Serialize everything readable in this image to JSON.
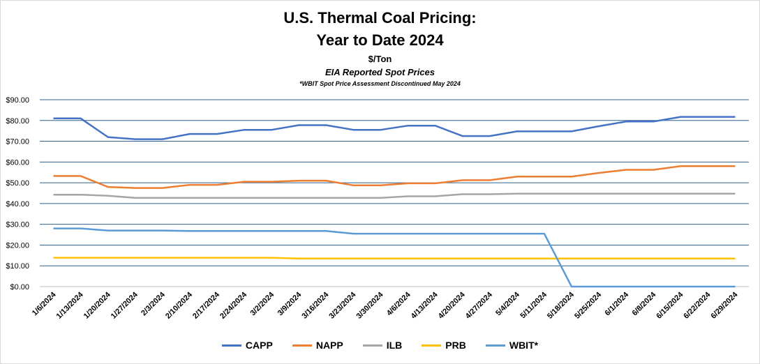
{
  "chart_data": {
    "type": "line",
    "title": "U.S. Thermal Coal Pricing:",
    "title_line2": "Year to Date 2024",
    "subtitle": "$/Ton",
    "subtitle2": "EIA Reported Spot Prices",
    "note": "*WBIT Spot Price Assessment Discontinued May 2024",
    "xlabel": "",
    "ylabel": "",
    "ylim": [
      0,
      90
    ],
    "yticks": [
      "$0.00",
      "$10.00",
      "$20.00",
      "$30.00",
      "$40.00",
      "$50.00",
      "$60.00",
      "$70.00",
      "$80.00",
      "$90.00"
    ],
    "grid": true,
    "legend_position": "bottom",
    "categories": [
      "1/6/2024",
      "1/13/2024",
      "1/20/2024",
      "1/27/2024",
      "2/3/2024",
      "2/10/2024",
      "2/17/2024",
      "2/24/2024",
      "3/2/2024",
      "3/9/2024",
      "3/16/2024",
      "3/23/2024",
      "3/30/2024",
      "4/6/2024",
      "4/13/2024",
      "4/20/2024",
      "4/27/2024",
      "5/4/2024",
      "5/11/2024",
      "5/18/2024",
      "5/25/2024",
      "6/1/2024",
      "6/8/2024",
      "6/15/2024",
      "6/22/2024",
      "6/29/2024"
    ],
    "series": [
      {
        "name": "CAPP",
        "color": "#4472c4",
        "values": [
          81,
          81,
          72,
          71,
          71,
          73.5,
          73.5,
          75.5,
          75.5,
          77.75,
          77.75,
          75.5,
          75.5,
          77.5,
          77.5,
          72.5,
          72.5,
          74.75,
          74.75,
          74.75,
          77.25,
          79.5,
          79.5,
          81.75,
          81.75,
          81.75
        ]
      },
      {
        "name": "NAPP",
        "color": "#ed7d31",
        "values": [
          53.25,
          53.25,
          48,
          47.5,
          47.5,
          49,
          49,
          50.5,
          50.5,
          51,
          51,
          48.75,
          48.75,
          49.75,
          49.75,
          51.25,
          51.25,
          53,
          53,
          53,
          54.75,
          56.25,
          56.25,
          58,
          58,
          58
        ]
      },
      {
        "name": "ILB",
        "color": "#a5a5a5",
        "values": [
          44.25,
          44.25,
          43.75,
          42.75,
          42.75,
          42.75,
          42.75,
          42.75,
          42.75,
          42.75,
          42.75,
          42.75,
          42.75,
          43.5,
          43.5,
          44.5,
          44.5,
          44.75,
          44.75,
          44.75,
          44.75,
          44.75,
          44.75,
          44.75,
          44.75,
          44.75
        ]
      },
      {
        "name": "PRB",
        "color": "#ffc000",
        "values": [
          13.9,
          13.9,
          13.9,
          13.9,
          13.9,
          13.9,
          13.9,
          13.9,
          13.9,
          13.55,
          13.55,
          13.55,
          13.55,
          13.55,
          13.55,
          13.55,
          13.55,
          13.55,
          13.55,
          13.55,
          13.55,
          13.55,
          13.55,
          13.55,
          13.55,
          13.55
        ]
      },
      {
        "name": "WBIT*",
        "color": "#5b9bd5",
        "values": [
          28,
          28,
          27,
          27,
          27,
          26.75,
          26.75,
          26.75,
          26.75,
          26.75,
          26.75,
          25.5,
          25.5,
          25.5,
          25.5,
          25.5,
          25.5,
          25.5,
          25.5,
          0,
          0,
          0,
          0,
          0,
          0,
          0
        ]
      }
    ]
  }
}
